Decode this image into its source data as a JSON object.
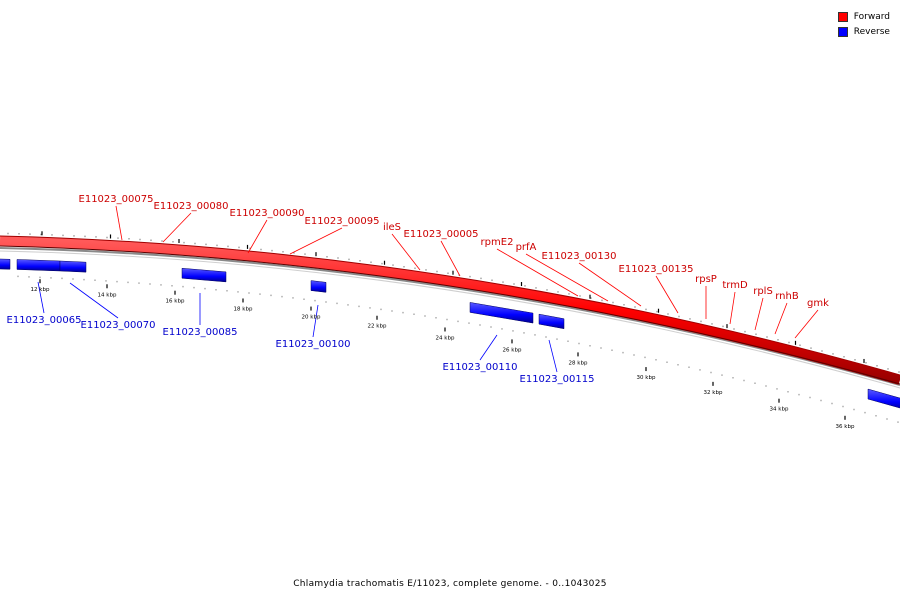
{
  "legend": [
    {
      "label": "Forward",
      "color": "#ff0000"
    },
    {
      "label": "Reverse",
      "color": "#0000ff"
    }
  ],
  "caption": "Chlamydia trachomatis E/11023, complete genome. - 0..1043025",
  "colors": {
    "forward_fill": "#ff0000",
    "forward_label": "#cc0000",
    "reverse_fill": "#0000ff",
    "reverse_label": "#0000cc",
    "backbone": "#999999"
  },
  "kbp_ticks": [
    "12 kbp",
    "14 kbp",
    "16 kbp",
    "18 kbp",
    "20 kbp",
    "22 kbp",
    "24 kbp",
    "26 kbp",
    "28 kbp",
    "30 kbp",
    "32 kbp",
    "34 kbp",
    "36 kbp"
  ],
  "forward_genes": [
    "E11023_00075",
    "E11023_00080",
    "E11023_00090",
    "E11023_00095",
    "ileS",
    "E11023_00005",
    "rpmE2",
    "prfA",
    "E11023_00130",
    "E11023_00135",
    "rpsP",
    "trmD",
    "rplS",
    "rnhB",
    "gmk"
  ],
  "reverse_genes": [
    "E11023_00065",
    "E11023_00070",
    "E11023_00085",
    "E11023_00100",
    "E11023_00110",
    "E11023_00115"
  ]
}
